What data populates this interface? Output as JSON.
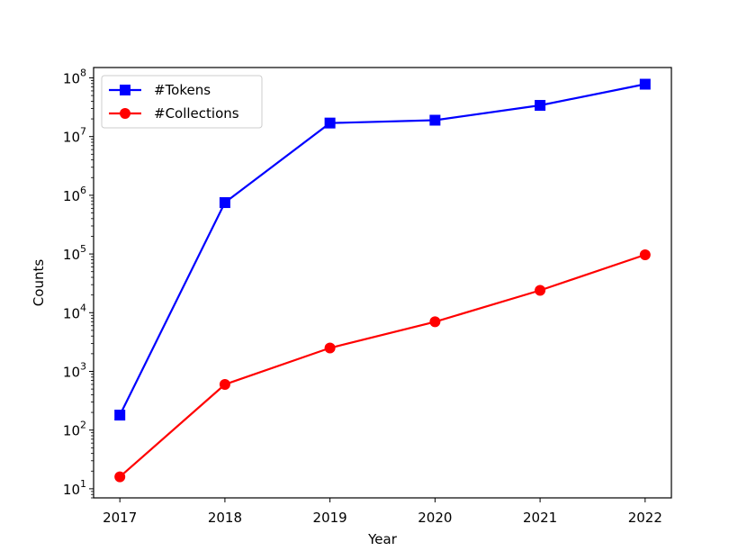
{
  "chart_data": {
    "type": "line",
    "title": "",
    "xlabel": "Year",
    "ylabel": "Counts",
    "x": [
      2017,
      2018,
      2019,
      2020,
      2021,
      2022
    ],
    "x_tick_labels": [
      "2017",
      "2018",
      "2019",
      "2020",
      "2021",
      "2022"
    ],
    "y_scale": "log",
    "ylim": [
      7,
      150000000
    ],
    "y_ticks": [
      {
        "value": 10,
        "base": "10",
        "exp": "1"
      },
      {
        "value": 100,
        "base": "10",
        "exp": "2"
      },
      {
        "value": 1000,
        "base": "10",
        "exp": "3"
      },
      {
        "value": 10000,
        "base": "10",
        "exp": "4"
      },
      {
        "value": 100000,
        "base": "10",
        "exp": "5"
      },
      {
        "value": 1000000,
        "base": "10",
        "exp": "6"
      },
      {
        "value": 10000000,
        "base": "10",
        "exp": "7"
      },
      {
        "value": 100000000,
        "base": "10",
        "exp": "8"
      }
    ],
    "grid": false,
    "legend_position": "upper-left",
    "series": [
      {
        "name": "#Tokens",
        "color": "#0000ff",
        "marker": "square",
        "values": [
          180,
          750000,
          17000000,
          19000000,
          34000000,
          78000000
        ]
      },
      {
        "name": "#Collections",
        "color": "#ff0000",
        "marker": "circle",
        "values": [
          16,
          600,
          2500,
          7000,
          24000,
          97000
        ]
      }
    ]
  }
}
